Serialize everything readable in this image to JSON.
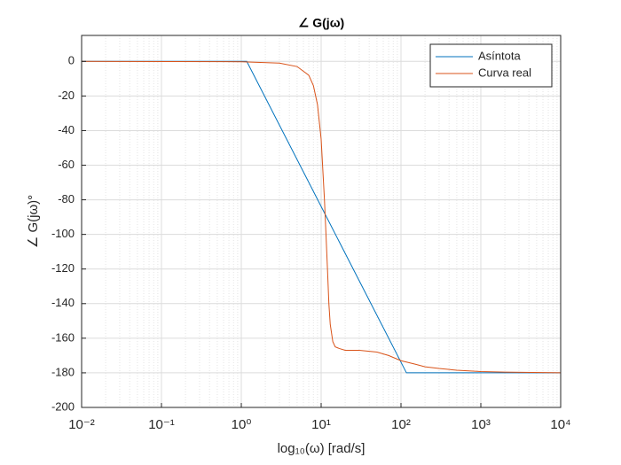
{
  "chart_data": {
    "type": "line",
    "title": "∠ G(jω)",
    "x_label": "log₁₀(ω) [rad/s]",
    "y_label": "∠ G(jω)°",
    "x_scale": "log",
    "grid": true,
    "minor_grid": true,
    "legend_position": "northeast",
    "xlim": [
      0.01,
      10000
    ],
    "xticks": [
      {
        "value": 0.01,
        "label": "10⁻²"
      },
      {
        "value": 0.1,
        "label": "10⁻¹"
      },
      {
        "value": 1,
        "label": "10⁰"
      },
      {
        "value": 10,
        "label": "10¹"
      },
      {
        "value": 100,
        "label": "10²"
      },
      {
        "value": 1000,
        "label": "10³"
      },
      {
        "value": 10000,
        "label": "10⁴"
      }
    ],
    "ylim": [
      -200,
      15
    ],
    "yticks": [
      -200,
      -180,
      -160,
      -140,
      -120,
      -100,
      -80,
      -60,
      -40,
      -20,
      0
    ],
    "series": [
      {
        "name": "Asíntota",
        "color": "#0072BD",
        "x": [
          0.01,
          1.17,
          117,
          10000
        ],
        "values": [
          0,
          0,
          -180,
          -180
        ]
      },
      {
        "name": "Curva real",
        "color": "#D95319",
        "x": [
          0.01,
          1,
          3,
          5,
          7,
          8,
          9,
          10,
          11,
          11.5,
          12,
          12.5,
          13,
          14,
          15,
          17,
          20,
          30,
          50,
          70,
          100,
          150,
          200,
          300,
          500,
          1000,
          2000,
          10000
        ],
        "values": [
          0,
          -0.2,
          -1,
          -3,
          -8,
          -14,
          -25,
          -45,
          -80,
          -100,
          -120,
          -140,
          -152,
          -162,
          -165,
          -166,
          -167,
          -167,
          -168,
          -170,
          -173,
          -175,
          -176.5,
          -177.5,
          -178.5,
          -179.3,
          -179.6,
          -180
        ]
      }
    ]
  }
}
